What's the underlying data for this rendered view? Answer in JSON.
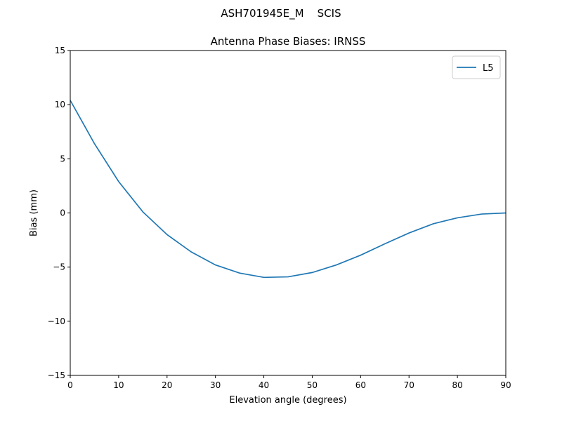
{
  "chart_data": {
    "type": "line",
    "suptitle": "ASH701945E_M    SCIS",
    "title": "Antenna Phase Biases: IRNSS",
    "xlabel": "Elevation angle (degrees)",
    "ylabel": "Bias (mm)",
    "x": [
      0,
      5,
      10,
      15,
      20,
      25,
      30,
      35,
      40,
      45,
      50,
      55,
      60,
      65,
      70,
      75,
      80,
      85,
      90
    ],
    "series": [
      {
        "name": "L5",
        "color": "#1f77b4",
        "values": [
          10.4,
          6.4,
          2.9,
          0.1,
          -2.0,
          -3.6,
          -4.8,
          -5.55,
          -5.95,
          -5.9,
          -5.5,
          -4.8,
          -3.9,
          -2.85,
          -1.85,
          -1.0,
          -0.45,
          -0.1,
          0.0
        ]
      }
    ],
    "xlim": [
      0,
      90
    ],
    "xticks": [
      0,
      10,
      20,
      30,
      40,
      50,
      60,
      70,
      80,
      90
    ],
    "ylim": [
      -15,
      15
    ],
    "yticks": [
      {
        "value": -15,
        "label": "−15"
      },
      {
        "value": -10,
        "label": "−10"
      },
      {
        "value": -5,
        "label": "−5"
      },
      0,
      5,
      10,
      15
    ],
    "grid": false,
    "legend": "upper right"
  }
}
